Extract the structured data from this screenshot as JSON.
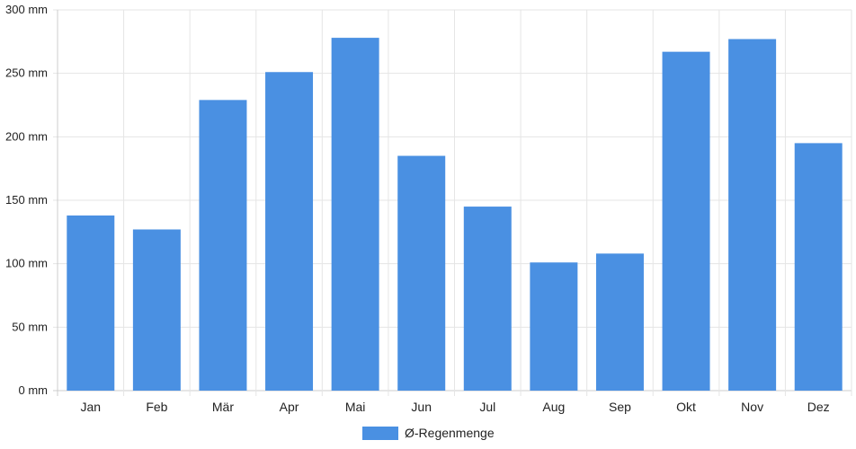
{
  "chart_data": {
    "type": "bar",
    "categories": [
      "Jan",
      "Feb",
      "Mär",
      "Apr",
      "Mai",
      "Jun",
      "Jul",
      "Aug",
      "Sep",
      "Okt",
      "Nov",
      "Dez"
    ],
    "series": [
      {
        "name": "Ø-Regenmenge",
        "values": [
          138,
          127,
          229,
          251,
          278,
          185,
          145,
          101,
          108,
          267,
          277,
          195
        ]
      }
    ],
    "yticks": [
      0,
      50,
      100,
      150,
      200,
      250,
      300
    ],
    "ytick_labels": [
      "0 mm",
      "50 mm",
      "100 mm",
      "150 mm",
      "200 mm",
      "250 mm",
      "300 mm"
    ],
    "ylim": [
      0,
      300
    ],
    "grid": true,
    "legend_position": "bottom",
    "colors": {
      "bar": "#4a90e2",
      "grid": "#e5e5e5",
      "axis": "#cccccc",
      "text": "#222222"
    }
  }
}
